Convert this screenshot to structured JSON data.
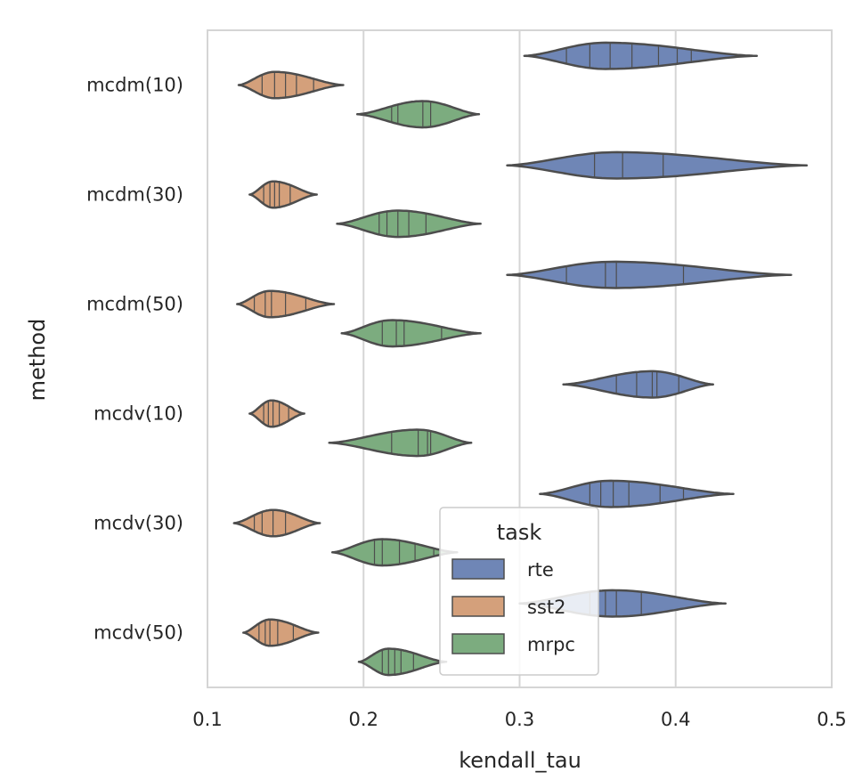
{
  "chart_data": {
    "type": "violin",
    "orientation": "horizontal",
    "inner": "stick",
    "xlabel": "kendall_tau",
    "ylabel": "method",
    "xlim": [
      0.1,
      0.5
    ],
    "xticks": [
      0.1,
      0.2,
      0.3,
      0.4,
      0.5
    ],
    "xtick_labels": [
      "0.1",
      "0.2",
      "0.3",
      "0.4",
      "0.5"
    ],
    "grid": "vertical",
    "categories": [
      "mcdm(10)",
      "mcdm(30)",
      "mcdm(50)",
      "mcdv(10)",
      "mcdv(30)",
      "mcdv(50)"
    ],
    "legend": {
      "title": "task",
      "placement": "lower-center",
      "entries": [
        "rte",
        "sst2",
        "mrpc"
      ]
    },
    "series": [
      {
        "name": "rte",
        "color": "#6f86b6",
        "values": [
          {
            "category": "mcdm(10)",
            "min": 0.303,
            "max": 0.452,
            "peak": 0.355,
            "sticks": [
              0.33,
              0.345,
              0.358,
              0.372,
              0.389,
              0.401,
              0.41
            ]
          },
          {
            "category": "mcdm(30)",
            "min": 0.292,
            "max": 0.484,
            "peak": 0.362,
            "sticks": [
              0.348,
              0.366,
              0.392
            ]
          },
          {
            "category": "mcdm(50)",
            "min": 0.292,
            "max": 0.474,
            "peak": 0.36,
            "sticks": [
              0.33,
              0.355,
              0.362,
              0.405
            ]
          },
          {
            "category": "mcdv(10)",
            "min": 0.328,
            "max": 0.424,
            "peak": 0.385,
            "sticks": [
              0.362,
              0.375,
              0.385,
              0.388,
              0.402
            ]
          },
          {
            "category": "mcdv(30)",
            "min": 0.313,
            "max": 0.437,
            "peak": 0.358,
            "sticks": [
              0.345,
              0.352,
              0.36,
              0.37,
              0.39,
              0.405
            ]
          },
          {
            "category": "mcdv(50)",
            "min": 0.3,
            "max": 0.432,
            "peak": 0.36,
            "sticks": [
              0.345,
              0.355,
              0.362,
              0.378
            ]
          }
        ]
      },
      {
        "name": "sst2",
        "color": "#d4a07b",
        "values": [
          {
            "category": "mcdm(10)",
            "min": 0.12,
            "max": 0.187,
            "peak": 0.143,
            "sticks": [
              0.135,
              0.143,
              0.15,
              0.157,
              0.168
            ]
          },
          {
            "category": "mcdm(30)",
            "min": 0.127,
            "max": 0.17,
            "peak": 0.142,
            "sticks": [
              0.136,
              0.14,
              0.143,
              0.146,
              0.153
            ]
          },
          {
            "category": "mcdm(50)",
            "min": 0.119,
            "max": 0.181,
            "peak": 0.14,
            "sticks": [
              0.13,
              0.137,
              0.141,
              0.15,
              0.163
            ]
          },
          {
            "category": "mcdv(10)",
            "min": 0.127,
            "max": 0.162,
            "peak": 0.141,
            "sticks": [
              0.136,
              0.139,
              0.142,
              0.146,
              0.152
            ]
          },
          {
            "category": "mcdv(30)",
            "min": 0.117,
            "max": 0.172,
            "peak": 0.142,
            "sticks": [
              0.13,
              0.135,
              0.142,
              0.15
            ]
          },
          {
            "category": "mcdv(50)",
            "min": 0.123,
            "max": 0.171,
            "peak": 0.14,
            "sticks": [
              0.133,
              0.137,
              0.14,
              0.145,
              0.155
            ]
          }
        ]
      },
      {
        "name": "mrpc",
        "color": "#7cac7f",
        "values": [
          {
            "category": "mcdm(10)",
            "min": 0.196,
            "max": 0.274,
            "peak": 0.238,
            "sticks": [
              0.218,
              0.222,
              0.238,
              0.243
            ]
          },
          {
            "category": "mcdm(30)",
            "min": 0.183,
            "max": 0.275,
            "peak": 0.222,
            "sticks": [
              0.21,
              0.215,
              0.222,
              0.229,
              0.24
            ]
          },
          {
            "category": "mcdm(50)",
            "min": 0.186,
            "max": 0.275,
            "peak": 0.218,
            "sticks": [
              0.212,
              0.221,
              0.226,
              0.25
            ]
          },
          {
            "category": "mcdv(10)",
            "min": 0.178,
            "max": 0.269,
            "peak": 0.235,
            "sticks": [
              0.218,
              0.235,
              0.241,
              0.243
            ]
          },
          {
            "category": "mcdv(30)",
            "min": 0.18,
            "max": 0.26,
            "peak": 0.212,
            "sticks": [
              0.207,
              0.212,
              0.223,
              0.233,
              0.245
            ]
          },
          {
            "category": "mcdv(50)",
            "min": 0.197,
            "max": 0.253,
            "peak": 0.216,
            "sticks": [
              0.212,
              0.216,
              0.22,
              0.224,
              0.232
            ]
          }
        ]
      }
    ]
  }
}
